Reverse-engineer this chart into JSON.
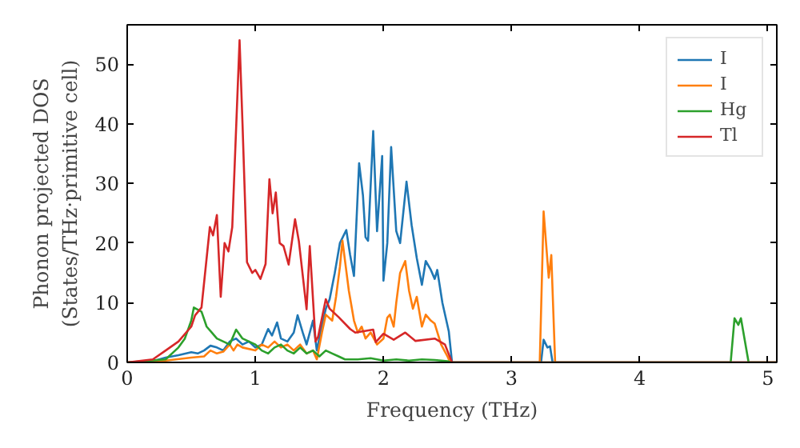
{
  "chart_data": {
    "type": "line",
    "xlabel": "Frequency (THz)",
    "ylabel": "Phonon projected DOS\n(States/THz·primitive cell)",
    "xlim": [
      0,
      5.07
    ],
    "ylim": [
      0,
      56.6
    ],
    "xticks": [
      0,
      1,
      2,
      3,
      4,
      5
    ],
    "yticks": [
      0,
      10,
      20,
      30,
      40,
      50
    ],
    "legend": "top right",
    "grid": false,
    "series": [
      {
        "name": "I",
        "color": "#1f77b4",
        "x": [
          0,
          0.2,
          0.3,
          0.4,
          0.5,
          0.55,
          0.6,
          0.65,
          0.7,
          0.75,
          0.8,
          0.85,
          0.9,
          0.95,
          1.0,
          1.05,
          1.1,
          1.13,
          1.17,
          1.2,
          1.25,
          1.3,
          1.33,
          1.37,
          1.4,
          1.45,
          1.48,
          1.52,
          1.55,
          1.58,
          1.62,
          1.66,
          1.71,
          1.74,
          1.77,
          1.81,
          1.84,
          1.86,
          1.88,
          1.92,
          1.95,
          1.99,
          2.0,
          2.03,
          2.06,
          2.1,
          2.13,
          2.18,
          2.22,
          2.26,
          2.3,
          2.33,
          2.37,
          2.4,
          2.42,
          2.46,
          2.51,
          2.535,
          3.23,
          3.25,
          3.28,
          3.3,
          3.32,
          5.07
        ],
        "values": [
          0,
          0.2,
          0.8,
          1.2,
          1.7,
          1.5,
          2,
          2.8,
          2.5,
          2,
          3.5,
          4,
          3,
          3.5,
          2.5,
          3,
          5.6,
          4.5,
          6.7,
          4,
          3.5,
          5,
          7.9,
          5,
          3,
          7,
          2,
          6.2,
          9,
          10.6,
          15,
          20,
          22.2,
          18,
          14.5,
          33.4,
          28,
          21,
          20.4,
          38.8,
          22,
          34.6,
          13.7,
          20,
          36.1,
          22,
          20,
          30.3,
          23,
          17.5,
          13,
          17,
          15.5,
          14,
          15.5,
          10,
          5.2,
          0,
          0,
          3.8,
          2.5,
          2.7,
          0,
          0
        ]
      },
      {
        "name": "I",
        "color": "#ff7f0e",
        "x": [
          0,
          0.3,
          0.5,
          0.6,
          0.65,
          0.7,
          0.75,
          0.8,
          0.83,
          0.86,
          0.9,
          1.0,
          1.05,
          1.1,
          1.15,
          1.2,
          1.25,
          1.3,
          1.35,
          1.4,
          1.45,
          1.48,
          1.52,
          1.55,
          1.6,
          1.63,
          1.66,
          1.68,
          1.73,
          1.77,
          1.8,
          1.83,
          1.86,
          1.9,
          1.95,
          2.0,
          2.03,
          2.05,
          2.08,
          2.1,
          2.13,
          2.17,
          2.2,
          2.23,
          2.26,
          2.3,
          2.33,
          2.37,
          2.4,
          2.45,
          2.5,
          2.52,
          3.22,
          3.25,
          3.29,
          3.31,
          3.34,
          5.07
        ],
        "values": [
          0,
          0.3,
          0.8,
          1,
          2,
          1.5,
          1.8,
          3,
          2,
          3,
          2.5,
          2,
          3,
          2.5,
          3.5,
          2.5,
          3,
          2,
          3,
          1.5,
          2,
          0.5,
          5,
          8,
          7,
          11,
          16,
          20.4,
          12,
          7,
          5,
          6,
          4,
          5,
          3,
          4,
          7.5,
          8,
          6,
          10,
          15,
          17,
          12,
          9,
          11,
          6,
          8,
          7,
          6.5,
          3,
          1,
          0,
          0,
          25.3,
          14.2,
          18,
          0,
          0
        ]
      },
      {
        "name": "Hg",
        "color": "#2ca02c",
        "x": [
          0,
          0.3,
          0.4,
          0.45,
          0.5,
          0.52,
          0.58,
          0.62,
          0.66,
          0.7,
          0.75,
          0.8,
          0.85,
          0.9,
          0.95,
          1.0,
          1.05,
          1.1,
          1.15,
          1.2,
          1.25,
          1.3,
          1.35,
          1.4,
          1.45,
          1.5,
          1.55,
          1.6,
          1.65,
          1.7,
          1.8,
          1.9,
          2.0,
          2.1,
          2.2,
          2.3,
          2.4,
          2.5,
          2.53,
          4.71,
          4.74,
          4.77,
          4.79,
          4.85,
          5.07
        ],
        "values": [
          0,
          0.5,
          2.5,
          4,
          7,
          9.2,
          8.5,
          6,
          5,
          4,
          3.5,
          3,
          5.5,
          4,
          3.5,
          3,
          2,
          1.5,
          2.5,
          3,
          2,
          1.5,
          2.5,
          1.5,
          2,
          1,
          2,
          1.5,
          1,
          0.5,
          0.5,
          0.7,
          0.3,
          0.5,
          0.3,
          0.5,
          0.4,
          0.2,
          0,
          0,
          7.4,
          6.3,
          7.4,
          0,
          0
        ]
      },
      {
        "name": "Tl",
        "color": "#d62728",
        "x": [
          0,
          0.2,
          0.3,
          0.4,
          0.5,
          0.53,
          0.58,
          0.645,
          0.67,
          0.7,
          0.73,
          0.76,
          0.79,
          0.82,
          0.877,
          0.9,
          0.935,
          0.976,
          1.0,
          1.04,
          1.08,
          1.11,
          1.135,
          1.16,
          1.19,
          1.22,
          1.26,
          1.31,
          1.34,
          1.4,
          1.425,
          1.47,
          1.49,
          1.55,
          1.58,
          1.65,
          1.74,
          1.78,
          1.92,
          1.94,
          2.0,
          2.08,
          2.17,
          2.25,
          2.4,
          2.48,
          2.535,
          5.07
        ],
        "values": [
          0,
          0.5,
          2,
          3.5,
          6,
          7.9,
          9.2,
          22.7,
          21.3,
          24.7,
          11,
          20,
          18.6,
          22.7,
          54,
          40,
          16.8,
          15,
          15.5,
          14,
          16.5,
          30.7,
          25,
          28.5,
          20,
          19.5,
          16.4,
          24,
          20.3,
          8.9,
          19.5,
          3.5,
          4.3,
          10.6,
          9,
          7.6,
          5.6,
          5,
          5.5,
          3.4,
          4.8,
          3.8,
          5,
          3.6,
          4,
          3,
          0,
          0
        ]
      }
    ]
  }
}
